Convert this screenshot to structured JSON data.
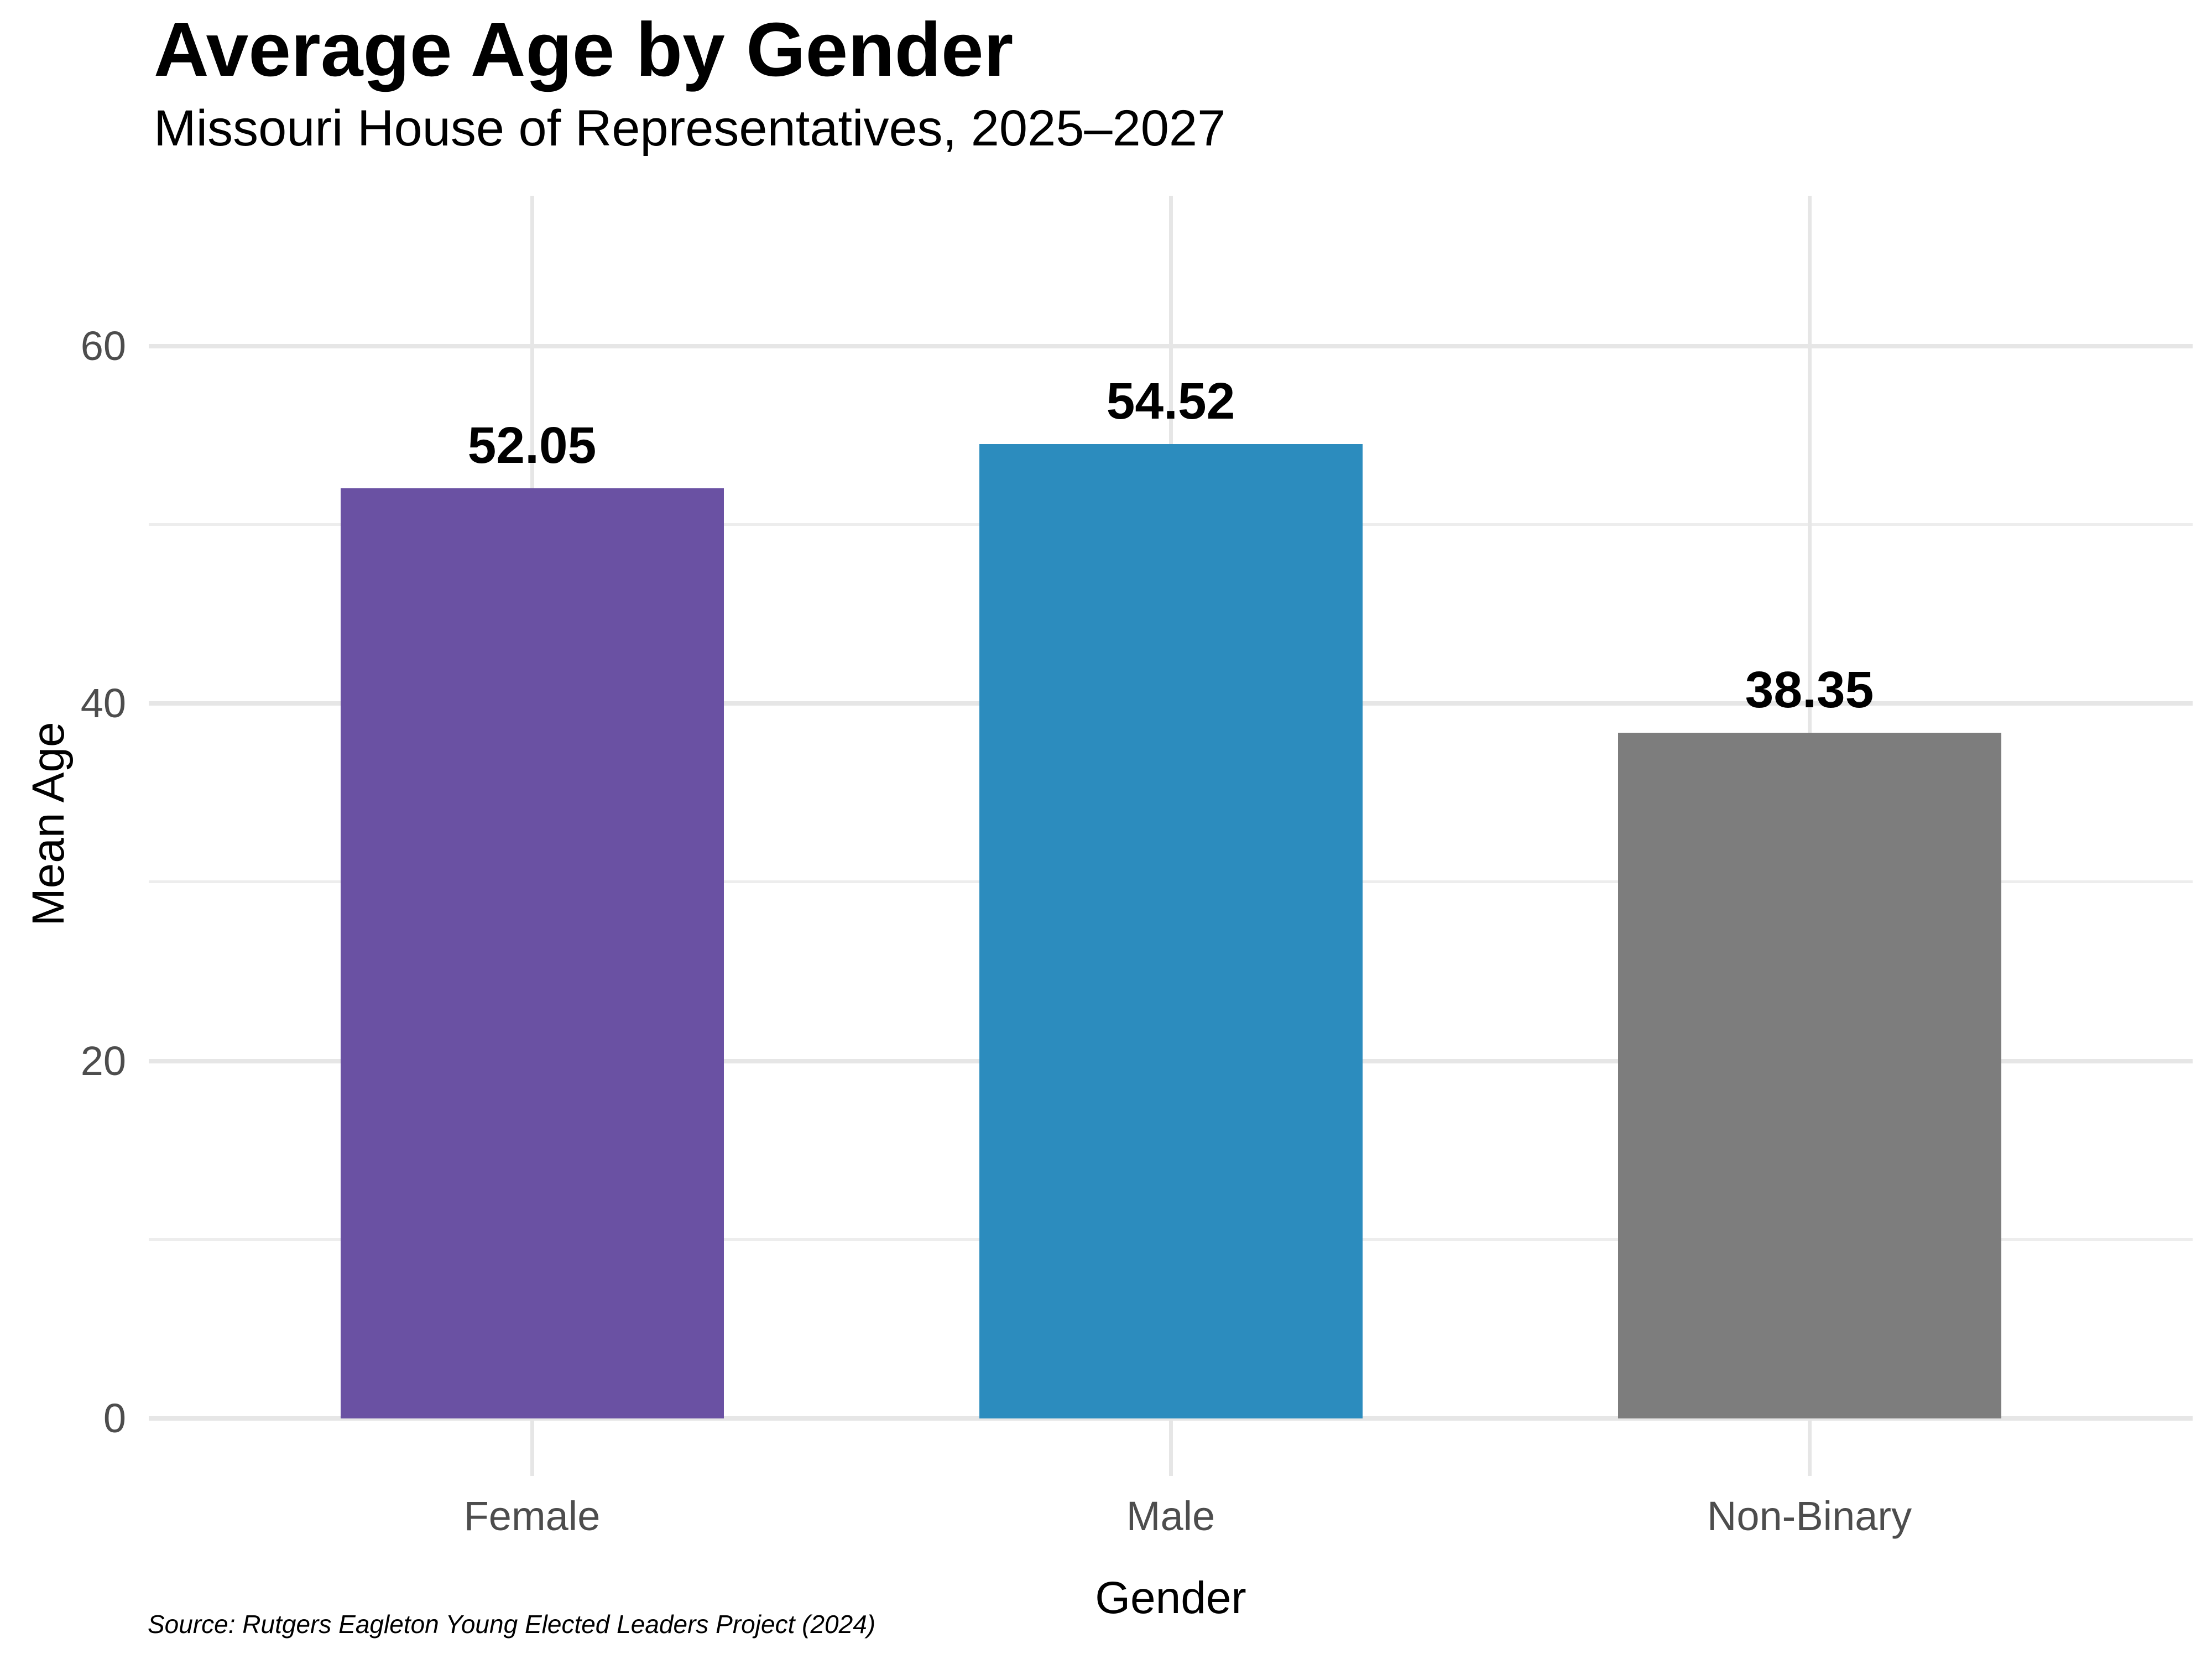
{
  "figure": {
    "source_note": "Source: Rutgers Eagleton Young Elected Leaders Project (2024)"
  },
  "chart_data": {
    "type": "bar",
    "title": "Average Age by Gender",
    "subtitle": "Missouri House of Representatives, 2025–2027",
    "xlabel": "Gender",
    "ylabel": "Mean Age",
    "categories": [
      "Female",
      "Male",
      "Non-Binary"
    ],
    "values": [
      52.05,
      54.52,
      38.35
    ],
    "value_labels": [
      "52.05",
      "54.52",
      "38.35"
    ],
    "bar_colors": [
      "#6A51A3",
      "#2C8CBE",
      "#7D7D7D"
    ],
    "y_ticks": [
      0,
      20,
      40,
      60
    ],
    "y_minor_ticks": [
      10,
      30,
      50
    ],
    "ylim": [
      0,
      68.4
    ],
    "grid": "horizontal major+minor, vertical lines at category centers",
    "legend_position": "none",
    "colors": {
      "background": "#FFFFFF",
      "grid_major": "#E6E6E6",
      "grid_minor": "#EDEDED",
      "tick_mark": "#E6E6E6",
      "axis_text": "#4D4D4D",
      "text": "#000000"
    }
  }
}
